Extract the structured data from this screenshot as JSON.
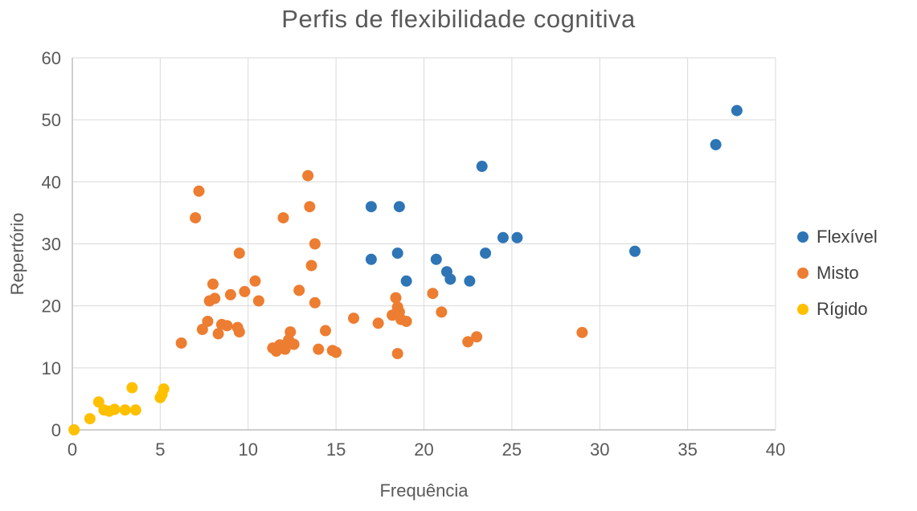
{
  "chart_data": {
    "type": "scatter",
    "title": "Perfis de flexibilidade cognitiva",
    "xlabel": "Frequência",
    "ylabel": "Repertório",
    "xlim": [
      0,
      40
    ],
    "ylim": [
      0,
      60
    ],
    "xticks": [
      0,
      5,
      10,
      15,
      20,
      25,
      30,
      35,
      40
    ],
    "yticks": [
      0,
      10,
      20,
      30,
      40,
      50,
      60
    ],
    "grid": true,
    "legend_position": "right",
    "colors": {
      "gridline": "#D9D9D9",
      "axis_line": "#BFBFBF",
      "tick_label": "#595959",
      "title": "#595959"
    },
    "series": [
      {
        "name": "Flexível",
        "color": "#2E75B6",
        "points": [
          [
            17,
            36
          ],
          [
            18.6,
            36
          ],
          [
            23.3,
            42.5
          ],
          [
            36.6,
            46
          ],
          [
            37.8,
            51.5
          ],
          [
            17,
            27.5
          ],
          [
            18.5,
            28.5
          ],
          [
            19,
            24
          ],
          [
            20.7,
            27.5
          ],
          [
            21.3,
            25.5
          ],
          [
            21.5,
            24.3
          ],
          [
            22.6,
            24
          ],
          [
            23.5,
            28.5
          ],
          [
            24.5,
            31
          ],
          [
            25.3,
            31
          ],
          [
            32,
            28.8
          ]
        ]
      },
      {
        "name": "Misto",
        "color": "#ED7D31",
        "points": [
          [
            6.2,
            14
          ],
          [
            7,
            34.2
          ],
          [
            7.2,
            38.5
          ],
          [
            7.4,
            16.2
          ],
          [
            7.7,
            17.5
          ],
          [
            7.8,
            20.8
          ],
          [
            8,
            23.5
          ],
          [
            8.1,
            21.2
          ],
          [
            8.3,
            15.5
          ],
          [
            8.5,
            17
          ],
          [
            8.8,
            16.8
          ],
          [
            9,
            21.8
          ],
          [
            9.4,
            16.5
          ],
          [
            9.5,
            15.8
          ],
          [
            9.5,
            28.5
          ],
          [
            9.8,
            22.3
          ],
          [
            10.4,
            24
          ],
          [
            10.6,
            20.8
          ],
          [
            11.4,
            13.2
          ],
          [
            11.6,
            12.7
          ],
          [
            11.8,
            13.7
          ],
          [
            12,
            34.2
          ],
          [
            12.1,
            13
          ],
          [
            12.3,
            14.5
          ],
          [
            12.4,
            15.8
          ],
          [
            12.6,
            13.8
          ],
          [
            12.9,
            22.5
          ],
          [
            13.4,
            41
          ],
          [
            13.5,
            36
          ],
          [
            13.6,
            26.5
          ],
          [
            13.8,
            30
          ],
          [
            13.8,
            20.5
          ],
          [
            14,
            13
          ],
          [
            14.4,
            16
          ],
          [
            14.8,
            12.8
          ],
          [
            15,
            12.5
          ],
          [
            16,
            18
          ],
          [
            17.4,
            17.2
          ],
          [
            18.2,
            18.5
          ],
          [
            18.4,
            21.3
          ],
          [
            18.5,
            19.8
          ],
          [
            18.6,
            19
          ],
          [
            18.7,
            17.8
          ],
          [
            18.5,
            12.3
          ],
          [
            19,
            17.5
          ],
          [
            20.5,
            22
          ],
          [
            21,
            19
          ],
          [
            22.5,
            14.2
          ],
          [
            23,
            15
          ],
          [
            29,
            15.7
          ]
        ]
      },
      {
        "name": "Rígido",
        "color": "#FFC000",
        "points": [
          [
            0.1,
            0
          ],
          [
            1,
            1.8
          ],
          [
            1.5,
            4.5
          ],
          [
            1.8,
            3.2
          ],
          [
            2.1,
            3
          ],
          [
            2.4,
            3.3
          ],
          [
            3,
            3.2
          ],
          [
            3.4,
            6.8
          ],
          [
            3.6,
            3.2
          ],
          [
            5,
            5.2
          ],
          [
            5.2,
            6.6
          ],
          [
            5.1,
            5.7
          ]
        ]
      }
    ]
  }
}
